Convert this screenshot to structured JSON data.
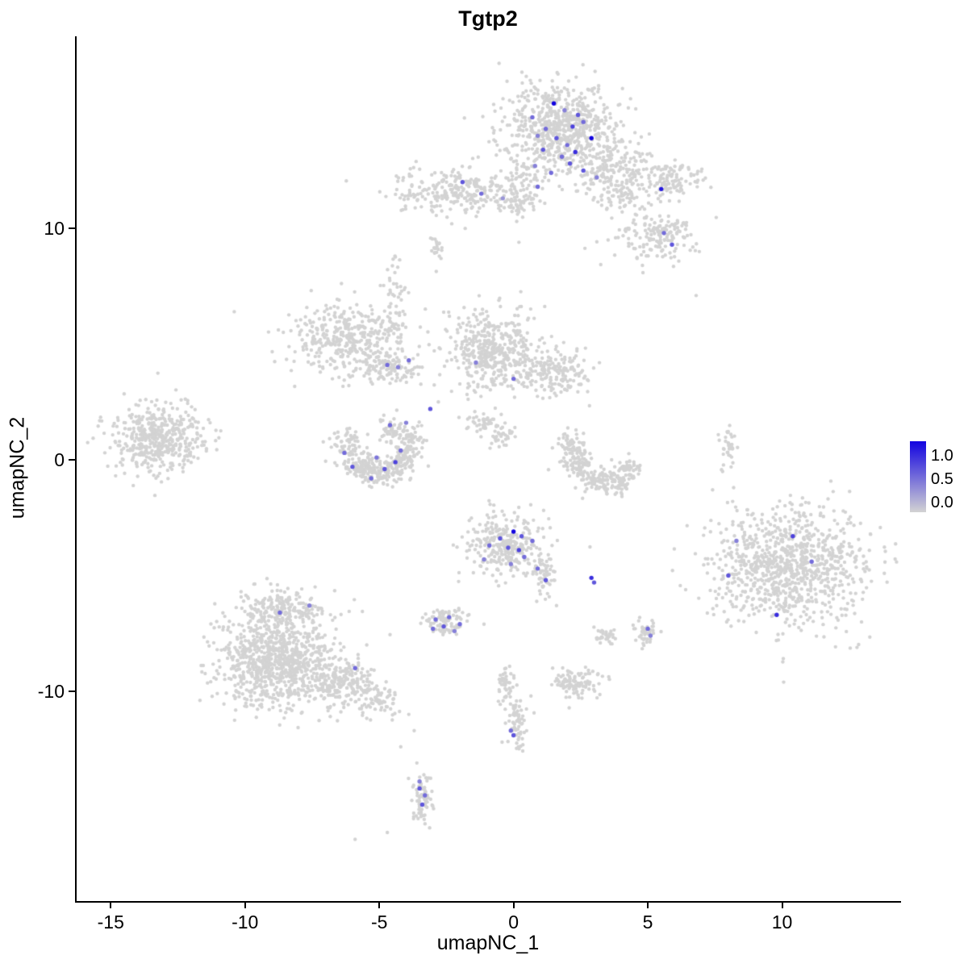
{
  "title": "Tgtp2",
  "legend": {
    "labels": [
      "1.0",
      "0.5",
      "0.0"
    ],
    "color_high": "#1203E0",
    "color_low": "#D3D3D3"
  },
  "chart_data": {
    "type": "scatter",
    "title": "Tgtp2",
    "xlabel": "umapNC_1",
    "ylabel": "umapNC_2",
    "xlim": [
      -16.3,
      14.4
    ],
    "ylim": [
      -19.1,
      18.3
    ],
    "x_ticks": [
      -15,
      -10,
      -5,
      0,
      5,
      10
    ],
    "y_ticks": [
      -10,
      0,
      10
    ],
    "grid": false,
    "legend_position": "right",
    "color_low": "#D3D3D3",
    "color_high": "#1203E0",
    "colorbar_ticks": [
      "1.0",
      "0.5",
      "0.0"
    ],
    "gray_clusters": [
      [
        1.7,
        14.4,
        1.05,
        0.95,
        650
      ],
      [
        3.2,
        12.6,
        0.7,
        0.7,
        160
      ],
      [
        4.2,
        11.5,
        0.5,
        0.5,
        70
      ],
      [
        4.5,
        12.9,
        0.4,
        0.4,
        40
      ],
      [
        0.3,
        12.3,
        0.3,
        0.4,
        30
      ],
      [
        5.8,
        12.1,
        0.55,
        0.45,
        110
      ],
      [
        5.4,
        9.7,
        0.8,
        0.55,
        170
      ],
      [
        -2.2,
        11.6,
        1.2,
        0.5,
        260
      ],
      [
        0.1,
        11.2,
        0.45,
        0.4,
        70
      ],
      [
        -2.9,
        9.2,
        0.15,
        0.3,
        20
      ],
      [
        -4.4,
        6.6,
        0.22,
        1.0,
        60
      ],
      [
        -6.3,
        5.2,
        1.0,
        0.75,
        380
      ],
      [
        -4.6,
        4.0,
        0.6,
        0.4,
        110
      ],
      [
        -0.8,
        4.8,
        0.85,
        0.85,
        420
      ],
      [
        1.4,
        3.9,
        0.8,
        0.5,
        190
      ],
      [
        -1.2,
        1.7,
        0.35,
        0.25,
        40
      ],
      [
        -0.4,
        1.0,
        0.3,
        0.25,
        35
      ],
      [
        -13.2,
        0.9,
        0.85,
        0.7,
        470
      ],
      [
        -6.2,
        0.6,
        0.3,
        0.35,
        70
      ],
      [
        -5.8,
        -0.2,
        0.3,
        0.3,
        70
      ],
      [
        -5.2,
        -0.55,
        0.3,
        0.28,
        70
      ],
      [
        -4.5,
        -0.5,
        0.3,
        0.28,
        70
      ],
      [
        -4.0,
        0.0,
        0.28,
        0.3,
        60
      ],
      [
        -3.8,
        0.8,
        0.25,
        0.35,
        55
      ],
      [
        -4.4,
        1.3,
        0.35,
        0.3,
        50
      ],
      [
        2.1,
        0.7,
        0.28,
        0.35,
        60
      ],
      [
        2.4,
        -0.2,
        0.28,
        0.3,
        65
      ],
      [
        3.0,
        -0.8,
        0.32,
        0.28,
        70
      ],
      [
        3.8,
        -1.0,
        0.3,
        0.28,
        65
      ],
      [
        4.3,
        -0.4,
        0.22,
        0.3,
        45
      ],
      [
        8.0,
        0.5,
        0.13,
        0.5,
        35
      ],
      [
        -0.3,
        -3.7,
        0.7,
        0.65,
        300
      ],
      [
        1.1,
        -5.0,
        0.22,
        0.5,
        55
      ],
      [
        10.3,
        -4.6,
        1.45,
        1.25,
        950
      ],
      [
        -8.8,
        -8.6,
        1.1,
        1.0,
        900
      ],
      [
        -8.5,
        -6.4,
        0.75,
        0.45,
        160
      ],
      [
        -6.3,
        -9.6,
        0.65,
        0.45,
        190
      ],
      [
        -5.1,
        -10.4,
        0.35,
        0.35,
        70
      ],
      [
        -2.5,
        -7.0,
        0.42,
        0.28,
        85
      ],
      [
        3.4,
        -7.7,
        0.25,
        0.22,
        35
      ],
      [
        5.0,
        -7.5,
        0.22,
        0.25,
        40
      ],
      [
        2.3,
        -9.6,
        0.45,
        0.32,
        110
      ],
      [
        -0.3,
        -9.8,
        0.18,
        0.45,
        45
      ],
      [
        0.1,
        -11.4,
        0.22,
        0.55,
        65
      ],
      [
        -3.4,
        -14.7,
        0.2,
        0.6,
        75
      ]
    ],
    "gray_singles": [
      [
        -10.4,
        6.4
      ],
      [
        6.8,
        7.1
      ],
      [
        -2.8,
        2.5
      ],
      [
        -2.3,
        10.2
      ],
      [
        -1.8,
        10.0
      ],
      [
        0.2,
        9.4
      ],
      [
        -2.7,
        8.7
      ],
      [
        4.6,
        8.7
      ],
      [
        4.8,
        8.4
      ],
      [
        -11.3,
        1.6
      ],
      [
        -1.1,
        -7.1
      ],
      [
        -3.9,
        -11.0
      ],
      [
        -3.7,
        -11.7
      ],
      [
        -4.2,
        -12.4
      ],
      [
        -3.6,
        -13.1
      ],
      [
        -5.9,
        -16.4
      ],
      [
        -4.7,
        -16.1
      ],
      [
        1.6,
        -6.3
      ]
    ],
    "expressing_points": [
      [
        1.5,
        15.4,
        1.0
      ],
      [
        0.7,
        14.8,
        0.5
      ],
      [
        1.9,
        15.1,
        0.4
      ],
      [
        2.4,
        14.9,
        0.6
      ],
      [
        2.6,
        14.6,
        0.5
      ],
      [
        2.2,
        14.4,
        0.7
      ],
      [
        1.2,
        14.3,
        0.5
      ],
      [
        0.9,
        14.0,
        0.4
      ],
      [
        1.6,
        13.9,
        0.6
      ],
      [
        2.9,
        13.9,
        1.0
      ],
      [
        2.0,
        13.6,
        0.5
      ],
      [
        1.1,
        13.4,
        0.6
      ],
      [
        2.3,
        13.3,
        0.8
      ],
      [
        1.8,
        13.1,
        0.5
      ],
      [
        0.8,
        12.7,
        0.4
      ],
      [
        1.4,
        12.4,
        0.5
      ],
      [
        2.6,
        12.5,
        0.6
      ],
      [
        3.1,
        12.2,
        0.4
      ],
      [
        2.1,
        12.8,
        0.6
      ],
      [
        5.5,
        11.7,
        0.9
      ],
      [
        5.6,
        9.8,
        0.5
      ],
      [
        5.9,
        9.3,
        0.6
      ],
      [
        -1.9,
        12.0,
        0.6
      ],
      [
        -1.2,
        11.5,
        0.5
      ],
      [
        0.9,
        11.8,
        0.5
      ],
      [
        -0.4,
        11.3,
        0.3
      ],
      [
        -4.7,
        4.1,
        0.5
      ],
      [
        -4.3,
        4.0,
        0.4
      ],
      [
        -3.9,
        4.3,
        0.5
      ],
      [
        -1.4,
        4.2,
        0.4
      ],
      [
        0.0,
        3.5,
        0.5
      ],
      [
        -3.1,
        2.2,
        0.6
      ],
      [
        -6.3,
        0.3,
        0.5
      ],
      [
        -6.0,
        -0.3,
        0.6
      ],
      [
        -5.3,
        -0.8,
        0.5
      ],
      [
        -5.1,
        0.1,
        0.45
      ],
      [
        -4.8,
        -0.4,
        0.6
      ],
      [
        -4.4,
        -0.1,
        0.7
      ],
      [
        -4.2,
        0.4,
        0.5
      ],
      [
        -4.6,
        1.5,
        0.5
      ],
      [
        -4.0,
        1.6,
        0.4
      ],
      [
        0.0,
        -3.1,
        1.0
      ],
      [
        -0.5,
        -3.4,
        0.6
      ],
      [
        -0.9,
        -3.7,
        0.5
      ],
      [
        -0.2,
        -3.8,
        0.6
      ],
      [
        0.2,
        -3.9,
        0.7
      ],
      [
        0.4,
        -4.2,
        0.5
      ],
      [
        -1.1,
        -4.3,
        0.4
      ],
      [
        0.7,
        -3.5,
        0.5
      ],
      [
        -0.1,
        -4.5,
        0.4
      ],
      [
        0.3,
        -3.3,
        0.6
      ],
      [
        0.9,
        -4.7,
        0.5
      ],
      [
        1.2,
        -5.2,
        0.6
      ],
      [
        2.9,
        -5.1,
        0.8
      ],
      [
        3.0,
        -5.3,
        0.6
      ],
      [
        10.4,
        -3.3,
        0.7
      ],
      [
        11.1,
        -4.4,
        0.5
      ],
      [
        9.8,
        -6.7,
        0.8
      ],
      [
        8.0,
        -5.0,
        0.6
      ],
      [
        8.3,
        -3.5,
        0.4
      ],
      [
        -8.7,
        -6.6,
        0.5
      ],
      [
        -7.6,
        -6.3,
        0.4
      ],
      [
        -5.9,
        -9.0,
        0.5
      ],
      [
        -2.9,
        -6.9,
        0.5
      ],
      [
        -2.6,
        -7.2,
        0.6
      ],
      [
        -2.4,
        -6.8,
        0.5
      ],
      [
        -2.0,
        -7.1,
        0.5
      ],
      [
        -2.2,
        -7.4,
        0.4
      ],
      [
        -3.0,
        -7.3,
        0.5
      ],
      [
        5.0,
        -7.3,
        0.5
      ],
      [
        5.1,
        -7.6,
        0.4
      ],
      [
        -0.1,
        -11.7,
        0.5
      ],
      [
        0.0,
        -11.9,
        0.6
      ],
      [
        -3.5,
        -14.2,
        0.6
      ],
      [
        -3.3,
        -14.5,
        0.5
      ],
      [
        -3.4,
        -14.9,
        0.6
      ],
      [
        -3.5,
        -13.9,
        0.4
      ]
    ]
  }
}
